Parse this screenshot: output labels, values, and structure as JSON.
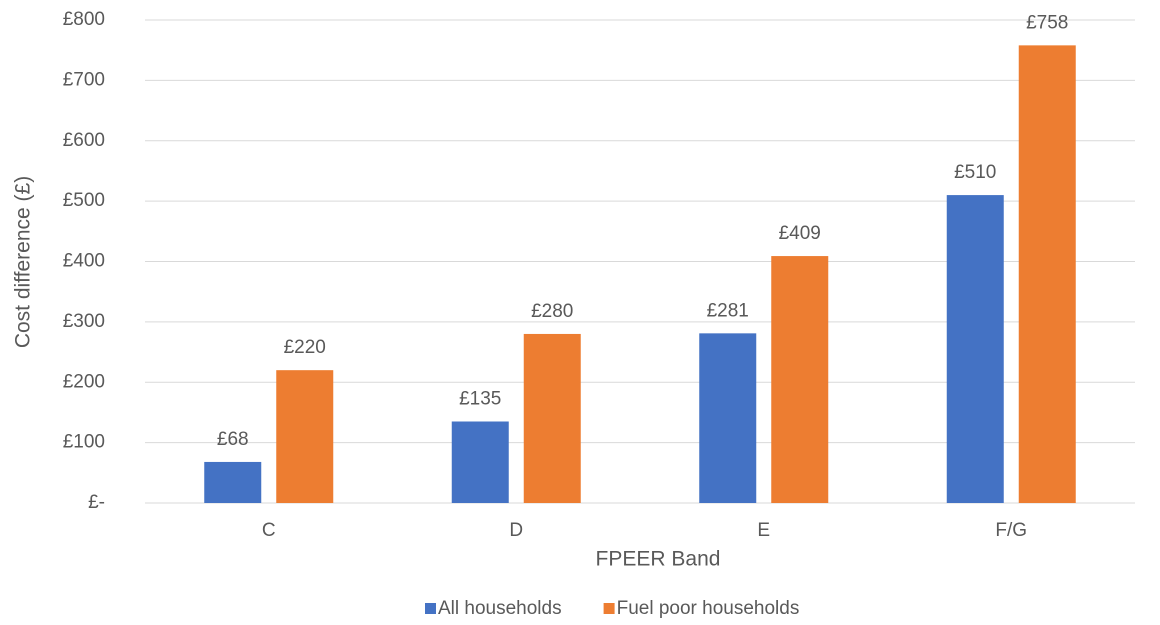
{
  "chart_data": {
    "type": "bar",
    "x_label": "FPEER Band",
    "y_label": "Cost difference (£)",
    "categories": [
      "C",
      "D",
      "E",
      "F/G"
    ],
    "series": [
      {
        "name": "All households",
        "color": "#4472c4",
        "values": [
          68,
          135,
          281,
          510
        ],
        "value_labels": [
          "£68",
          "£135",
          "£281",
          "£510"
        ]
      },
      {
        "name": "Fuel poor households",
        "color": "#ed7d31",
        "values": [
          220,
          280,
          409,
          758
        ],
        "value_labels": [
          "£220",
          "£280",
          "£409",
          "£758"
        ]
      }
    ],
    "ylim": [
      0,
      800
    ],
    "yticks": [
      {
        "value": 0,
        "label": "£-"
      },
      {
        "value": 100,
        "label": "£100"
      },
      {
        "value": 200,
        "label": "£200"
      },
      {
        "value": 300,
        "label": "£300"
      },
      {
        "value": 400,
        "label": "£400"
      },
      {
        "value": 500,
        "label": "£500"
      },
      {
        "value": 600,
        "label": "£600"
      },
      {
        "value": 700,
        "label": "£700"
      },
      {
        "value": 800,
        "label": "£800"
      }
    ],
    "grid": true,
    "legend": "bottom"
  }
}
